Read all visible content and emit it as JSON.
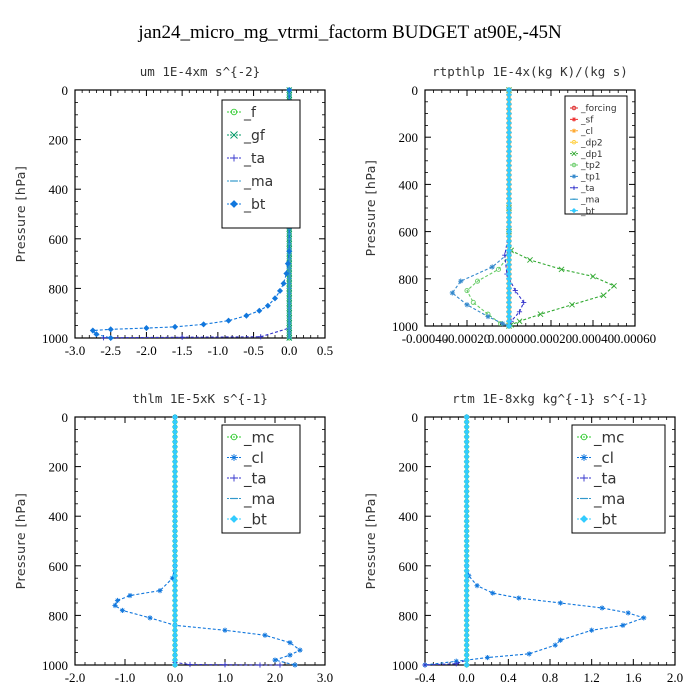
{
  "title": "jan24_micro_mg_vtrmi_factorm  BUDGET at90E,-45N",
  "chart_data": [
    {
      "type": "line",
      "title": "um   1E-4xm s^{-2}",
      "ylabel": "Pressure [hPa]",
      "xlim": [
        -3.0,
        0.5
      ],
      "ylim": [
        1000,
        0
      ],
      "xticks": [
        "-3.0",
        "-2.5",
        "-2.0",
        "-1.5",
        "-1.0",
        "-0.5",
        "0.0",
        "0.5"
      ],
      "xtick_values": [
        -3.0,
        -2.5,
        -2.0,
        -1.5,
        -1.0,
        -0.5,
        0.0,
        0.5
      ],
      "yticks": [
        "0",
        "200",
        "400",
        "600",
        "800",
        "1000"
      ],
      "ytick_values": [
        0,
        200,
        400,
        600,
        800,
        1000
      ],
      "legend": "top-right",
      "series": [
        {
          "name": "_f",
          "color": "#33cc33",
          "marker": "o",
          "x": [
            0,
            0,
            0,
            0,
            0,
            0,
            0,
            0,
            0,
            0,
            0,
            0
          ],
          "y": [
            0,
            100,
            200,
            300,
            400,
            500,
            600,
            700,
            800,
            900,
            950,
            1000
          ]
        },
        {
          "name": "_gf",
          "color": "#009966",
          "marker": "x",
          "x": [
            0,
            0,
            0,
            0,
            0,
            0,
            0,
            0,
            0,
            0,
            0,
            0
          ],
          "y": [
            0,
            100,
            200,
            300,
            400,
            500,
            600,
            700,
            800,
            900,
            950,
            1000
          ]
        },
        {
          "name": "_ta",
          "color": "#3333cc",
          "marker": "+",
          "x": [
            0,
            0,
            0,
            -0.4,
            -1.5,
            -2.6
          ],
          "y": [
            0,
            800,
            960,
            995,
            997,
            999
          ]
        },
        {
          "name": "_ma",
          "color": "#3399cc",
          "marker": "-",
          "x": [
            0,
            0,
            0,
            0
          ],
          "y": [
            0,
            500,
            900,
            1000
          ]
        },
        {
          "name": "_bt",
          "color": "#1177dd",
          "marker": "diamond",
          "x": [
            0,
            0,
            0,
            0,
            -0.02,
            -0.04,
            -0.08,
            -0.13,
            -0.2,
            -0.3,
            -0.42,
            -0.6,
            -0.85,
            -1.2,
            -1.6,
            -2.0,
            -2.5,
            -2.75,
            -2.7,
            -2.5
          ],
          "y": [
            0,
            300,
            500,
            650,
            700,
            740,
            780,
            810,
            840,
            870,
            890,
            910,
            930,
            945,
            955,
            960,
            965,
            970,
            985,
            1000
          ]
        }
      ]
    },
    {
      "type": "line",
      "title": "rtpthlp   1E-4x(kg K)/(kg s)",
      "ylabel": "Pressure [hPa]",
      "xlim": [
        -0.0004,
        0.0006
      ],
      "ylim": [
        1000,
        0
      ],
      "xticks": [
        "-0.00040",
        "-0.00020",
        "0.00000",
        "0.00020",
        "0.00040",
        "0.00060"
      ],
      "xtick_values": [
        -0.0004,
        -0.0002,
        0,
        0.0002,
        0.0004,
        0.0006
      ],
      "yticks": [
        "0",
        "200",
        "400",
        "600",
        "800",
        "1000"
      ],
      "ytick_values": [
        0,
        200,
        400,
        600,
        800,
        1000
      ],
      "legend": "top-right",
      "series": [
        {
          "name": "_forcing",
          "color": "#dd2222",
          "marker": "o",
          "x": [
            0,
            0,
            0,
            0,
            0,
            0,
            0,
            0,
            0,
            0,
            0
          ],
          "y": [
            0,
            100,
            200,
            300,
            400,
            500,
            600,
            700,
            800,
            900,
            1000
          ]
        },
        {
          "name": "_sf",
          "color": "#ee3333",
          "marker": "*",
          "x": [
            0,
            0,
            0,
            0
          ],
          "y": [
            0,
            400,
            800,
            1000
          ]
        },
        {
          "name": "_cl",
          "color": "#ffaa33",
          "marker": "*",
          "x": [
            0,
            0,
            0
          ],
          "y": [
            0,
            500,
            1000
          ]
        },
        {
          "name": "_dp2",
          "color": "#ffcc33",
          "marker": "o",
          "x": [
            0,
            0,
            0
          ],
          "y": [
            0,
            500,
            1000
          ]
        },
        {
          "name": "_dp1",
          "color": "#33aa33",
          "marker": "x",
          "x": [
            0,
            0,
            0,
            1e-05,
            0.0001,
            0.00025,
            0.0004,
            0.0005,
            0.00045,
            0.0003,
            0.00015,
            5e-05,
            1e-05,
            0
          ],
          "y": [
            0,
            500,
            600,
            680,
            720,
            760,
            790,
            830,
            870,
            910,
            950,
            980,
            995,
            1000
          ]
        },
        {
          "name": "_tp2",
          "color": "#66cc66",
          "marker": "o",
          "x": [
            0,
            0,
            0,
            -5e-05,
            -0.00015,
            -0.0002,
            -0.00017,
            -0.0001,
            -4e-05,
            0
          ],
          "y": [
            0,
            600,
            700,
            760,
            810,
            850,
            900,
            950,
            990,
            1000
          ]
        },
        {
          "name": "_tp1",
          "color": "#3388cc",
          "marker": "*",
          "x": [
            0,
            0,
            0,
            -8e-05,
            -0.00023,
            -0.00027,
            -0.0002,
            -0.0001,
            -3e-05,
            0
          ],
          "y": [
            0,
            600,
            690,
            750,
            810,
            860,
            910,
            960,
            990,
            1000
          ]
        },
        {
          "name": "_ta",
          "color": "#3333cc",
          "marker": "+",
          "x": [
            0,
            0,
            -2e-05,
            -1e-05,
            3e-05,
            7e-05,
            5e-05,
            1e-05,
            0
          ],
          "y": [
            0,
            600,
            700,
            780,
            850,
            900,
            940,
            980,
            1000
          ]
        },
        {
          "name": "_ma",
          "color": "#3399cc",
          "marker": "-",
          "x": [
            0,
            0
          ],
          "y": [
            0,
            1000
          ]
        },
        {
          "name": "_bt",
          "color": "#33ccff",
          "marker": "diamond",
          "x": [
            0,
            0
          ],
          "y": [
            0,
            1000
          ]
        }
      ]
    },
    {
      "type": "line",
      "title": "thlm   1E-5xK s^{-1}",
      "ylabel": "Pressure [hPa]",
      "xlim": [
        -2.0,
        3.0
      ],
      "ylim": [
        1000,
        0
      ],
      "xticks": [
        "-2.0",
        "-1.0",
        "0.0",
        "1.0",
        "2.0",
        "3.0"
      ],
      "xtick_values": [
        -2.0,
        -1.0,
        0.0,
        1.0,
        2.0,
        3.0
      ],
      "yticks": [
        "0",
        "200",
        "400",
        "600",
        "800",
        "1000"
      ],
      "ytick_values": [
        0,
        200,
        400,
        600,
        800,
        1000
      ],
      "legend": "top-right",
      "series": [
        {
          "name": "_mc",
          "color": "#33cc33",
          "marker": "o",
          "x": [
            0,
            0,
            0,
            0,
            0,
            0,
            0,
            0,
            0,
            0,
            0
          ],
          "y": [
            0,
            100,
            200,
            300,
            400,
            500,
            600,
            700,
            800,
            900,
            1000
          ]
        },
        {
          "name": "_cl",
          "color": "#1177dd",
          "marker": "*",
          "x": [
            0,
            0,
            -0.05,
            -0.3,
            -0.9,
            -1.15,
            -1.2,
            -1.05,
            -0.5,
            0,
            1.0,
            1.8,
            2.3,
            2.5,
            2.3,
            2.0,
            2.4
          ],
          "y": [
            0,
            600,
            650,
            700,
            720,
            740,
            760,
            780,
            810,
            840,
            860,
            880,
            910,
            940,
            960,
            980,
            1000
          ]
        },
        {
          "name": "_ta",
          "color": "#3333cc",
          "marker": "+",
          "x": [
            0,
            0,
            0.3,
            1.0,
            1.7,
            2.1
          ],
          "y": [
            0,
            990,
            998,
            999,
            1000,
            1000
          ]
        },
        {
          "name": "_ma",
          "color": "#3399cc",
          "marker": "-",
          "x": [
            0,
            0
          ],
          "y": [
            0,
            1000
          ]
        },
        {
          "name": "_bt",
          "color": "#33ccff",
          "marker": "diamond",
          "x": [
            0,
            0
          ],
          "y": [
            0,
            1000
          ]
        }
      ]
    },
    {
      "type": "line",
      "title": "rtm   1E-8xkg kg^{-1} s^{-1}",
      "ylabel": "Pressure [hPa]",
      "xlim": [
        -0.4,
        2.0
      ],
      "ylim": [
        1000,
        0
      ],
      "xticks": [
        "-0.4",
        "0.0",
        "0.4",
        "0.8",
        "1.2",
        "1.6",
        "2.0"
      ],
      "xtick_values": [
        -0.4,
        0.0,
        0.4,
        0.8,
        1.2,
        1.6,
        2.0
      ],
      "yticks": [
        "0",
        "200",
        "400",
        "600",
        "800",
        "1000"
      ],
      "ytick_values": [
        0,
        200,
        400,
        600,
        800,
        1000
      ],
      "legend": "top-right",
      "series": [
        {
          "name": "_mc",
          "color": "#33cc33",
          "marker": "o",
          "x": [
            0,
            0,
            0,
            0,
            0,
            0,
            0,
            0,
            0,
            0,
            0
          ],
          "y": [
            0,
            100,
            200,
            300,
            400,
            500,
            600,
            700,
            800,
            900,
            1000
          ]
        },
        {
          "name": "_cl",
          "color": "#1177dd",
          "marker": "*",
          "x": [
            0,
            0,
            0.02,
            0.1,
            0.25,
            0.5,
            0.9,
            1.3,
            1.55,
            1.7,
            1.5,
            1.2,
            0.9,
            0.85,
            0.6,
            0.2,
            -0.1,
            -0.4
          ],
          "y": [
            0,
            600,
            640,
            680,
            710,
            730,
            750,
            770,
            790,
            810,
            840,
            860,
            900,
            920,
            955,
            970,
            985,
            1000
          ]
        },
        {
          "name": "_ta",
          "color": "#3333cc",
          "marker": "+",
          "x": [
            0,
            0,
            -0.1,
            -0.4
          ],
          "y": [
            0,
            980,
            995,
            1000
          ]
        },
        {
          "name": "_ma",
          "color": "#3399cc",
          "marker": "-",
          "x": [
            0,
            0
          ],
          "y": [
            0,
            1000
          ]
        },
        {
          "name": "_bt",
          "color": "#33ccff",
          "marker": "diamond",
          "x": [
            0,
            0
          ],
          "y": [
            0,
            1000
          ]
        }
      ]
    }
  ]
}
